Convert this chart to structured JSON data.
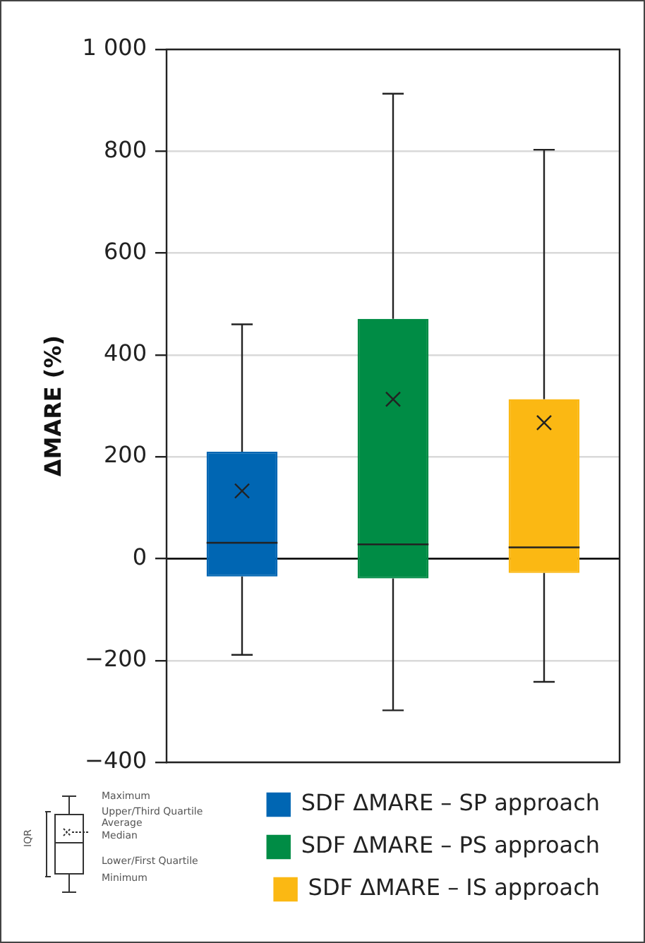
{
  "chart_data": {
    "type": "box",
    "ylabel": "ΔMARE (%)",
    "categories": [
      null,
      null,
      null
    ],
    "series": [
      {
        "name": "SDF ΔMARE – SP approach",
        "color": "#0066b3",
        "boxes": [
          {
            "low": -189,
            "q1": -35,
            "median": 31,
            "q3": 210,
            "high": 460,
            "mean": 133
          },
          null,
          null
        ]
      },
      {
        "name": "SDF ΔMARE – PS approach",
        "color": "#008c45",
        "boxes": [
          null,
          {
            "low": -298,
            "q1": -39,
            "median": 28,
            "q3": 471,
            "high": 913,
            "mean": 313
          },
          null
        ]
      },
      {
        "name": "SDF ΔMARE – IS approach",
        "color": "#fbb813",
        "boxes": [
          null,
          null,
          {
            "low": -242,
            "q1": -28,
            "median": 22,
            "q3": 313,
            "high": 803,
            "mean": 267
          }
        ]
      }
    ],
    "ylim": [
      -400,
      1000
    ],
    "yticks": [
      {
        "value": -400,
        "label": "−400"
      },
      {
        "value": -200,
        "label": "−200"
      },
      0,
      200,
      400,
      600,
      800,
      {
        "value": 1000,
        "label": "1 000"
      }
    ],
    "grid": "y",
    "legend": "bottom",
    "tick_labels": "y",
    "ref_lines": [
      {
        "axis": "y",
        "value": 0,
        "color": "#000000"
      }
    ],
    "annotations": [
      "Maximum",
      "Upper/Third Quartile",
      "Average",
      "Median",
      "Lower/First Quartile",
      "Minimum",
      "IQR"
    ]
  }
}
